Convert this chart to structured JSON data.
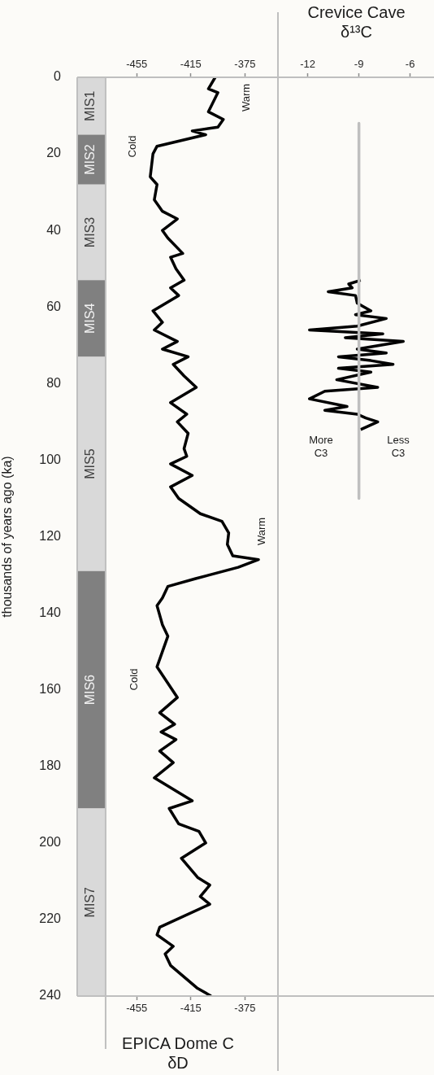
{
  "chart_data": [
    {
      "type": "line",
      "orientation": "horizontal",
      "ylabel": "thousands of years ago (ka)",
      "xlabel": "EPICA Dome C δD",
      "ylim": [
        240,
        0
      ],
      "yticks": [
        0,
        20,
        40,
        60,
        80,
        100,
        120,
        140,
        160,
        180,
        200,
        220,
        240
      ],
      "xlim": [
        -499,
        -350
      ],
      "xticks": [
        -455,
        -415,
        -375
      ],
      "x2lim": [
        -499,
        -350
      ],
      "x2ticks": [
        -455,
        -415,
        -375
      ],
      "bands": [
        {
          "axis": "y",
          "from": 0,
          "to": 15,
          "label": "MIS1",
          "color": "#d9d9d9"
        },
        {
          "axis": "y",
          "from": 15,
          "to": 28,
          "label": "MIS2",
          "color": "#808080"
        },
        {
          "axis": "y",
          "from": 28,
          "to": 53,
          "label": "MIS3",
          "color": "#d9d9d9"
        },
        {
          "axis": "y",
          "from": 53,
          "to": 73,
          "label": "MIS4",
          "color": "#808080"
        },
        {
          "axis": "y",
          "from": 73,
          "to": 129,
          "label": "MIS5",
          "color": "#d9d9d9"
        },
        {
          "axis": "y",
          "from": 129,
          "to": 191,
          "label": "MIS6",
          "color": "#808080"
        },
        {
          "axis": "y",
          "from": 191,
          "to": 240,
          "label": "MIS7",
          "color": "#d9d9d9"
        }
      ],
      "ref_lines": [
        {
          "axis": "x",
          "value": -478,
          "color": "#bfbfbf"
        }
      ],
      "annotations": [
        "Cold",
        "Warm",
        "Warm",
        "Cold"
      ],
      "series": [
        {
          "color": "#000000",
          "x": [
            0,
            3,
            4,
            9,
            11,
            13,
            14,
            15,
            16,
            18,
            20,
            26,
            28,
            32,
            35,
            37,
            40,
            42,
            46,
            47,
            50,
            53,
            55,
            57,
            61,
            64,
            66,
            69,
            71,
            73,
            75,
            78,
            81,
            85,
            88,
            90,
            93,
            97,
            99,
            101,
            104,
            107,
            110,
            114,
            116,
            119,
            122,
            125,
            126,
            128,
            131,
            133,
            136,
            138,
            143,
            146,
            150,
            154,
            162,
            166,
            169,
            171,
            173,
            176,
            179,
            183,
            189,
            191,
            195,
            197,
            200,
            204,
            209,
            211,
            214,
            216,
            222,
            224,
            227,
            229,
            232,
            238,
            240
          ],
          "values": [
            -397,
            -402,
            -395,
            -402,
            -391,
            -395,
            -414,
            -404,
            -416,
            -440,
            -443,
            -445,
            -440,
            -442,
            -436,
            -425,
            -436,
            -432,
            -421,
            -430,
            -426,
            -420,
            -430,
            -424,
            -443,
            -436,
            -442,
            -425,
            -436,
            -417,
            -428,
            -420,
            -411,
            -430,
            -418,
            -425,
            -417,
            -420,
            -418,
            -430,
            -414,
            -430,
            -424,
            -408,
            -392,
            -387,
            -388,
            -384,
            -365,
            -380,
            -412,
            -432,
            -436,
            -440,
            -436,
            -432,
            -436,
            -440,
            -425,
            -438,
            -427,
            -437,
            -426,
            -438,
            -428,
            -442,
            -414,
            -431,
            -424,
            -409,
            -404,
            -422,
            -410,
            -401,
            -408,
            -401,
            -438,
            -440,
            -428,
            -434,
            -430,
            -410,
            -400
          ]
        }
      ]
    },
    {
      "type": "line",
      "orientation": "horizontal",
      "tick_labels": "x",
      "x2label": "Crevice Cave δ¹³C",
      "ylim": [
        240,
        0
      ],
      "x2lim": [
        -13.7,
        -4.6
      ],
      "x2ticks": [
        -12,
        -9,
        -6
      ],
      "annotations": [
        "More\nC3",
        "Less\nC3"
      ],
      "series": [
        {
          "axis": "x2",
          "color": "#bfbfbf",
          "x": [
            12,
            110
          ],
          "values": [
            -9,
            -9
          ]
        },
        {
          "axis": "x2",
          "color": "#000000",
          "x": [
            53,
            54,
            55,
            56,
            57,
            59,
            61,
            62,
            63,
            65,
            66,
            67,
            68,
            69,
            71,
            72,
            73,
            74,
            75,
            76,
            77,
            79,
            81,
            82,
            84,
            86,
            87,
            88,
            89,
            90,
            92
          ],
          "values": [
            -8.9,
            -9.6,
            -9.4,
            -10.8,
            -9.2,
            -9.1,
            -8.3,
            -9.2,
            -7.4,
            -9.1,
            -11.9,
            -7.6,
            -9.8,
            -6.4,
            -9.1,
            -7.4,
            -10.2,
            -8.3,
            -7.0,
            -10.2,
            -8.3,
            -10.3,
            -7.9,
            -11.0,
            -11.9,
            -9.7,
            -11.0,
            -9.1,
            -8.6,
            -7.9,
            -8.9
          ]
        }
      ]
    }
  ]
}
